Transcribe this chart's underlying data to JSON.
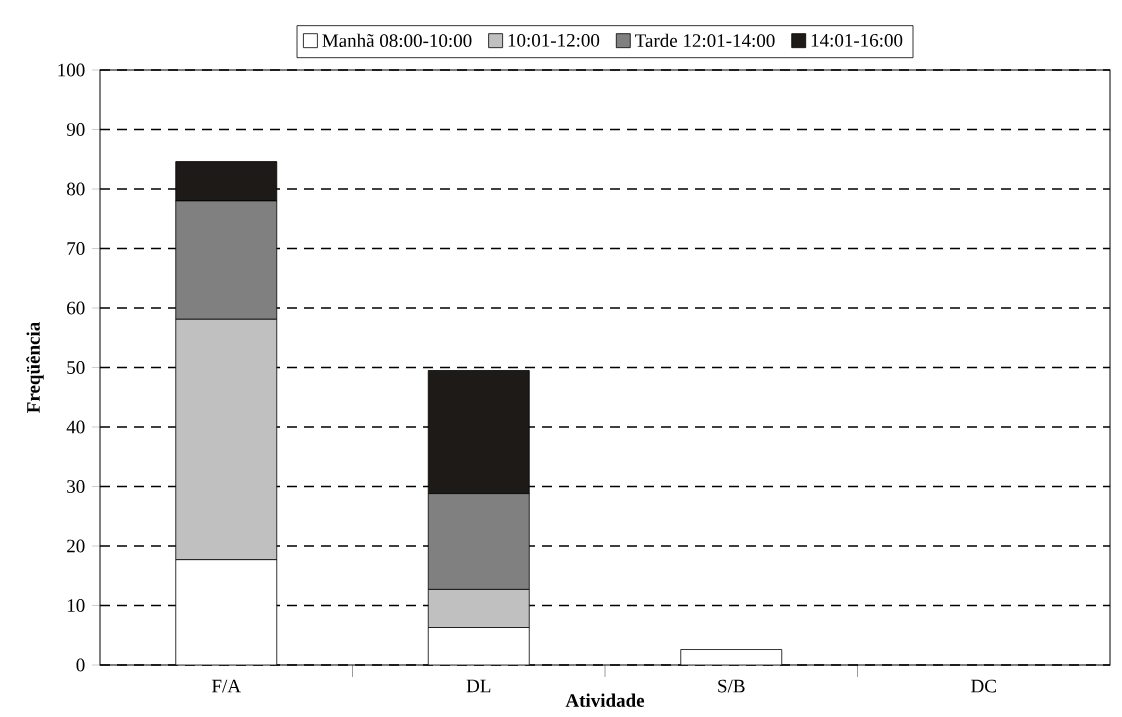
{
  "chart_data": {
    "type": "bar",
    "stacked": true,
    "xlabel": "Atividade",
    "ylabel": "Freqüência",
    "categories": [
      "F/A",
      "DL",
      "S/B",
      "DC"
    ],
    "series": [
      {
        "name": "Manhã 08:00-10:00",
        "color": "#ffffff",
        "values": [
          17.7,
          6.3,
          2.6,
          0
        ]
      },
      {
        "name": "10:01-12:00",
        "color": "#c0c0c0",
        "values": [
          40.4,
          6.4,
          0,
          0
        ]
      },
      {
        "name": "Tarde 12:01-14:00",
        "color": "#808080",
        "values": [
          19.9,
          16.1,
          0,
          0
        ]
      },
      {
        "name": "14:01-16:00",
        "color": "#1e1a18",
        "values": [
          6.6,
          20.7,
          0,
          0
        ]
      }
    ],
    "ylim": [
      0,
      100
    ],
    "yticks": [
      0,
      10,
      20,
      30,
      40,
      50,
      60,
      70,
      80,
      90,
      100
    ],
    "grid": "y",
    "legend": "top"
  }
}
